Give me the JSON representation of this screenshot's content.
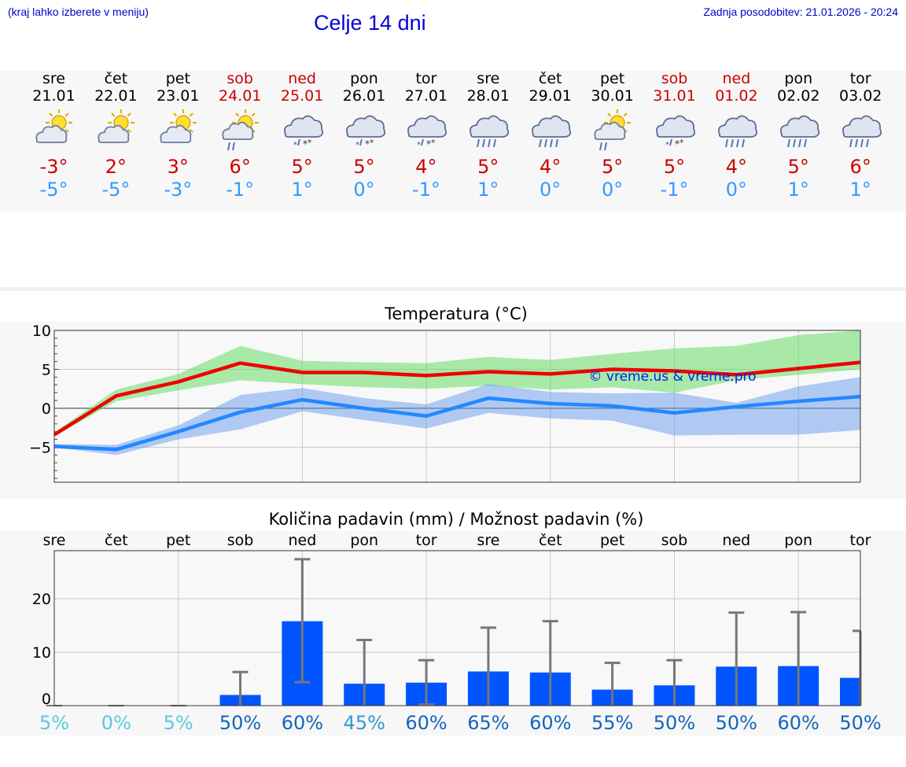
{
  "header": {
    "hint": "(kraj lahko izberete v meniju)",
    "title": "Celje 14 dni",
    "updated": "Zadnja posodobitev: 21.01.2026 - 20:24"
  },
  "days": [
    {
      "name": "sre",
      "date": "21.01",
      "weekend": false,
      "icon": "sun-cloud-icon",
      "tmax": "-3°",
      "tmin": "-5°"
    },
    {
      "name": "čet",
      "date": "22.01",
      "weekend": false,
      "icon": "sun-cloud-icon",
      "tmax": "2°",
      "tmin": "-5°"
    },
    {
      "name": "pet",
      "date": "23.01",
      "weekend": false,
      "icon": "sun-cloud-icon",
      "tmax": "3°",
      "tmin": "-3°"
    },
    {
      "name": "sob",
      "date": "24.01",
      "weekend": true,
      "icon": "sun-cloud-rain-icon",
      "tmax": "6°",
      "tmin": "-1°"
    },
    {
      "name": "ned",
      "date": "25.01",
      "weekend": true,
      "icon": "cloud-sleet-icon",
      "tmax": "5°",
      "tmin": "1°"
    },
    {
      "name": "pon",
      "date": "26.01",
      "weekend": false,
      "icon": "cloud-sleet-icon",
      "tmax": "5°",
      "tmin": "0°"
    },
    {
      "name": "tor",
      "date": "27.01",
      "weekend": false,
      "icon": "cloud-sleet-icon",
      "tmax": "4°",
      "tmin": "-1°"
    },
    {
      "name": "sre",
      "date": "28.01",
      "weekend": false,
      "icon": "cloud-rain-icon",
      "tmax": "5°",
      "tmin": "1°"
    },
    {
      "name": "čet",
      "date": "29.01",
      "weekend": false,
      "icon": "cloud-rain-icon",
      "tmax": "4°",
      "tmin": "0°"
    },
    {
      "name": "pet",
      "date": "30.01",
      "weekend": false,
      "icon": "sun-cloud-rain-icon",
      "tmax": "5°",
      "tmin": "0°"
    },
    {
      "name": "sob",
      "date": "31.01",
      "weekend": true,
      "icon": "cloud-sleet-icon",
      "tmax": "5°",
      "tmin": "-1°"
    },
    {
      "name": "ned",
      "date": "01.02",
      "weekend": true,
      "icon": "cloud-rain-icon",
      "tmax": "4°",
      "tmin": "0°"
    },
    {
      "name": "pon",
      "date": "02.02",
      "weekend": false,
      "icon": "cloud-rain-icon",
      "tmax": "5°",
      "tmin": "1°"
    },
    {
      "name": "tor",
      "date": "03.02",
      "weekend": false,
      "icon": "cloud-rain-icon",
      "tmax": "6°",
      "tmin": "1°"
    }
  ],
  "colors": {
    "maxLine": "#ee0000",
    "maxBand": "#66dd66",
    "minLine": "#2288ff",
    "minBand": "#6699ee",
    "bar": "#0055ff",
    "errorBar": "#777777",
    "probLow": "#55ccdd",
    "probMid": "#3399cc",
    "probHigh": "#1166bb"
  },
  "chart_data": [
    {
      "type": "line",
      "title": "Temperatura (°C)",
      "watermark": "© vreme.us & vreme.pro",
      "ylim": [
        -9.5,
        10
      ],
      "yticks": [
        -5,
        0,
        5,
        10
      ],
      "ytick_labels": [
        "−5",
        "0",
        "5",
        "10"
      ],
      "x": [
        0,
        1,
        2,
        3,
        4,
        5,
        6,
        7,
        8,
        9,
        10,
        11,
        12,
        13
      ],
      "series": [
        {
          "name": "max",
          "values": [
            -3.4,
            1.6,
            3.4,
            5.8,
            4.6,
            4.6,
            4.2,
            4.7,
            4.4,
            5.0,
            4.8,
            4.3,
            5.1,
            5.9
          ]
        },
        {
          "name": "min",
          "values": [
            -4.9,
            -5.3,
            -3.0,
            -0.5,
            1.1,
            0.0,
            -1.0,
            1.3,
            0.6,
            0.3,
            -0.6,
            0.2,
            0.9,
            1.5
          ]
        }
      ],
      "bands": [
        {
          "name": "max range",
          "low": [
            -3.6,
            0.9,
            2.3,
            3.6,
            3.1,
            2.7,
            2.5,
            2.9,
            2.4,
            2.7,
            2.0,
            3.6,
            4.3,
            5.0
          ],
          "high": [
            -3.1,
            2.4,
            4.4,
            8.0,
            6.1,
            5.9,
            5.8,
            6.6,
            6.2,
            7.0,
            7.7,
            8.0,
            9.4,
            10.0
          ]
        },
        {
          "name": "min range",
          "low": [
            -5.0,
            -6.0,
            -4.0,
            -2.7,
            -0.4,
            -1.5,
            -2.6,
            -0.6,
            -1.3,
            -1.6,
            -3.5,
            -3.4,
            -3.4,
            -2.8
          ],
          "high": [
            -4.6,
            -4.7,
            -2.2,
            1.7,
            2.6,
            1.3,
            0.5,
            3.1,
            2.1,
            1.9,
            2.0,
            0.7,
            2.8,
            4.0
          ]
        }
      ]
    },
    {
      "type": "bar",
      "title": "Količina padavin (mm) / Možnost padavin (%)",
      "ylim": [
        0,
        29
      ],
      "yticks": [
        0,
        10,
        20
      ],
      "ytick_labels": [
        "0",
        "10",
        "20"
      ],
      "categories": [
        "sre",
        "čet",
        "pet",
        "sob",
        "ned",
        "pon",
        "tor",
        "sre",
        "čet",
        "pet",
        "sob",
        "ned",
        "pon",
        "tor"
      ],
      "values": [
        0,
        0,
        0,
        2.0,
        15.8,
        4.1,
        4.3,
        6.4,
        6.2,
        3.0,
        3.8,
        7.3,
        7.4,
        5.2
      ],
      "error_low": [
        0,
        0,
        0,
        0,
        4.4,
        0,
        0.2,
        0,
        0,
        0,
        0,
        0,
        0,
        0
      ],
      "error_high": [
        0,
        0,
        0,
        6.3,
        27.4,
        12.3,
        8.5,
        14.6,
        15.8,
        8.0,
        8.5,
        17.4,
        17.5,
        14.0
      ],
      "probability": [
        "5%",
        "0%",
        "5%",
        "50%",
        "60%",
        "45%",
        "60%",
        "65%",
        "60%",
        "55%",
        "50%",
        "50%",
        "60%",
        "50%"
      ],
      "probability_values": [
        5,
        0,
        5,
        50,
        60,
        45,
        60,
        65,
        60,
        55,
        50,
        50,
        60,
        50
      ]
    }
  ]
}
